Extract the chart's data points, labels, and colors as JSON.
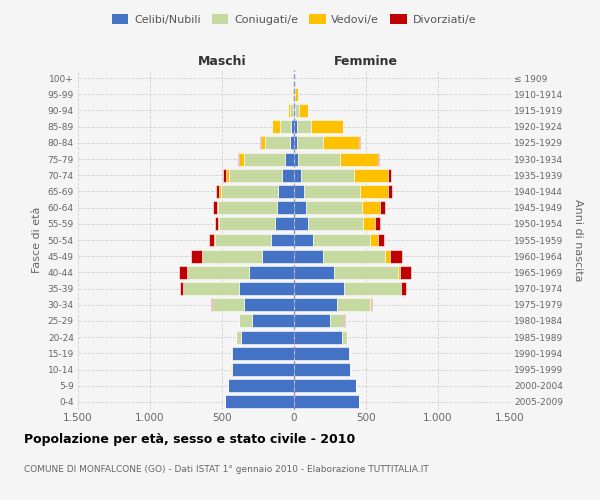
{
  "age_groups": [
    "0-4",
    "5-9",
    "10-14",
    "15-19",
    "20-24",
    "25-29",
    "30-34",
    "35-39",
    "40-44",
    "45-49",
    "50-54",
    "55-59",
    "60-64",
    "65-69",
    "70-74",
    "75-79",
    "80-84",
    "85-89",
    "90-94",
    "95-99",
    "100+"
  ],
  "birth_years": [
    "2005-2009",
    "2000-2004",
    "1995-1999",
    "1990-1994",
    "1985-1989",
    "1980-1984",
    "1975-1979",
    "1970-1974",
    "1965-1969",
    "1960-1964",
    "1955-1959",
    "1950-1954",
    "1945-1949",
    "1940-1944",
    "1935-1939",
    "1930-1934",
    "1925-1929",
    "1920-1924",
    "1915-1919",
    "1910-1914",
    "≤ 1909"
  ],
  "maschi": {
    "celibi": [
      480,
      460,
      430,
      430,
      370,
      290,
      350,
      380,
      310,
      220,
      160,
      130,
      120,
      110,
      80,
      60,
      30,
      20,
      8,
      3,
      2
    ],
    "coniugati": [
      0,
      0,
      5,
      5,
      30,
      90,
      220,
      390,
      430,
      420,
      390,
      390,
      410,
      400,
      370,
      290,
      170,
      80,
      18,
      5,
      0
    ],
    "vedovi": [
      0,
      0,
      10,
      0,
      5,
      0,
      0,
      0,
      0,
      2,
      3,
      5,
      5,
      10,
      20,
      30,
      30,
      50,
      15,
      5,
      0
    ],
    "divorziati": [
      0,
      0,
      0,
      0,
      0,
      2,
      8,
      25,
      60,
      70,
      40,
      25,
      30,
      25,
      20,
      10,
      5,
      0,
      0,
      0,
      0
    ]
  },
  "femmine": {
    "nubili": [
      450,
      430,
      390,
      380,
      330,
      250,
      300,
      350,
      280,
      200,
      130,
      100,
      80,
      70,
      50,
      30,
      20,
      20,
      10,
      5,
      2
    ],
    "coniugate": [
      0,
      0,
      5,
      10,
      40,
      100,
      230,
      390,
      440,
      430,
      400,
      380,
      390,
      390,
      370,
      290,
      180,
      100,
      25,
      5,
      0
    ],
    "vedove": [
      0,
      0,
      0,
      0,
      0,
      0,
      2,
      5,
      15,
      40,
      50,
      80,
      130,
      190,
      230,
      260,
      250,
      220,
      60,
      15,
      0
    ],
    "divorziate": [
      0,
      0,
      0,
      0,
      0,
      5,
      10,
      30,
      80,
      80,
      45,
      35,
      35,
      30,
      25,
      10,
      5,
      0,
      0,
      0,
      0
    ]
  },
  "colors": {
    "celibi": "#4472c4",
    "coniugati": "#c5d9a0",
    "vedovi": "#ffc000",
    "divorziati": "#c00000"
  },
  "xlim": 1500,
  "title": "Popolazione per età, sesso e stato civile - 2010",
  "subtitle": "COMUNE DI MONFALCONE (GO) - Dati ISTAT 1° gennaio 2010 - Elaborazione TUTTITALIA.IT",
  "ylabel_left": "Fasce di età",
  "ylabel_right": "Anni di nascita",
  "xlabel_maschi": "Maschi",
  "xlabel_femmine": "Femmine",
  "legend_labels": [
    "Celibi/Nubili",
    "Coniugati/e",
    "Vedovi/e",
    "Divorziati/e"
  ],
  "bg_color": "#f5f5f5",
  "grid_color": "#cccccc"
}
